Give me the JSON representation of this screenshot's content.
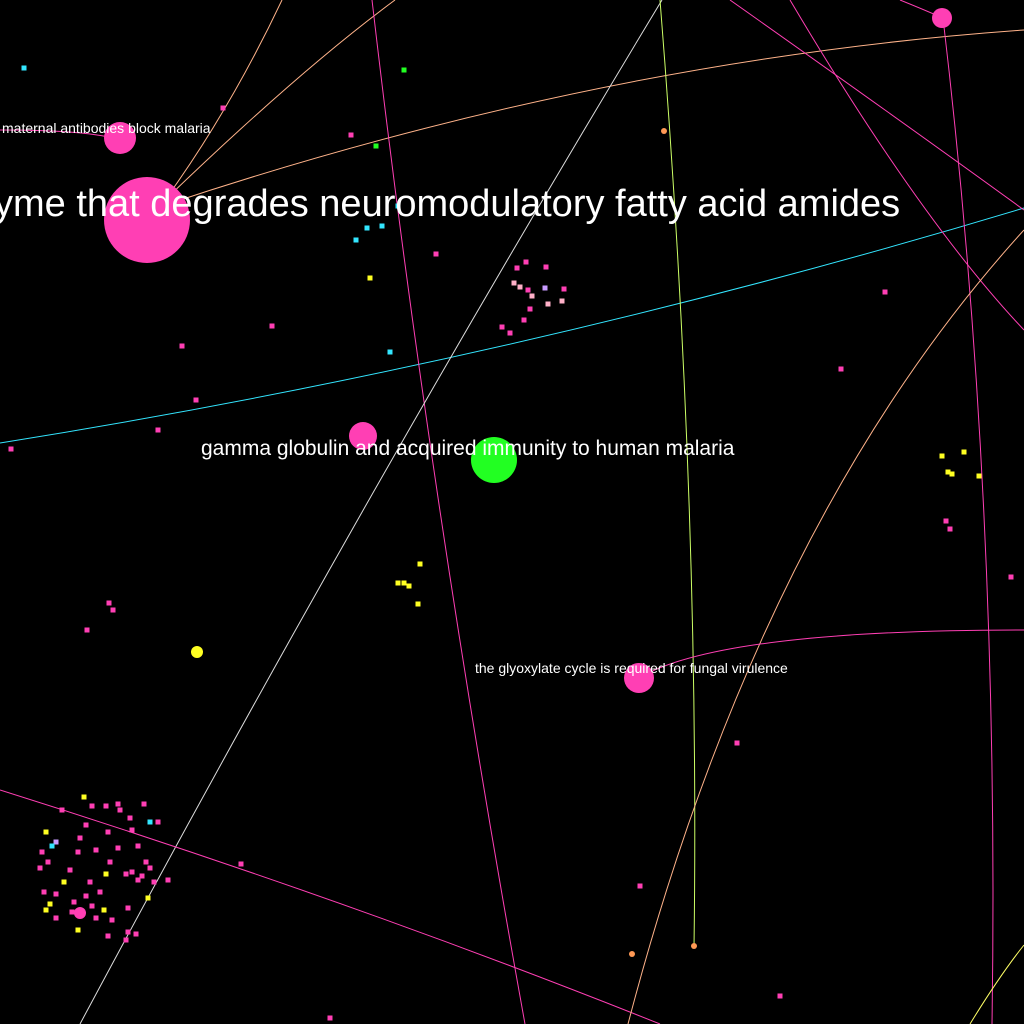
{
  "graph": {
    "background": "#000000",
    "colors": {
      "pink": "#ff3fb4",
      "green": "#22ff22",
      "yellow": "#ffff22",
      "cyan": "#33e6ff",
      "orange": "#ff9955",
      "peach": "#ffb38a",
      "lime": "#ccff66",
      "lavender": "#c89bff",
      "white": "#ffffff"
    },
    "labels": [
      {
        "id": "faah",
        "text": "yme that degrades neuromodulatory fatty acid amides"
      },
      {
        "id": "gamma",
        "text": "gamma globulin and acquired immunity to human malaria"
      },
      {
        "id": "maternal",
        "text": "maternal antibodies block malaria"
      },
      {
        "id": "glyoxylate",
        "text": "the glyoxylate cycle is required for fungal virulence"
      }
    ]
  }
}
